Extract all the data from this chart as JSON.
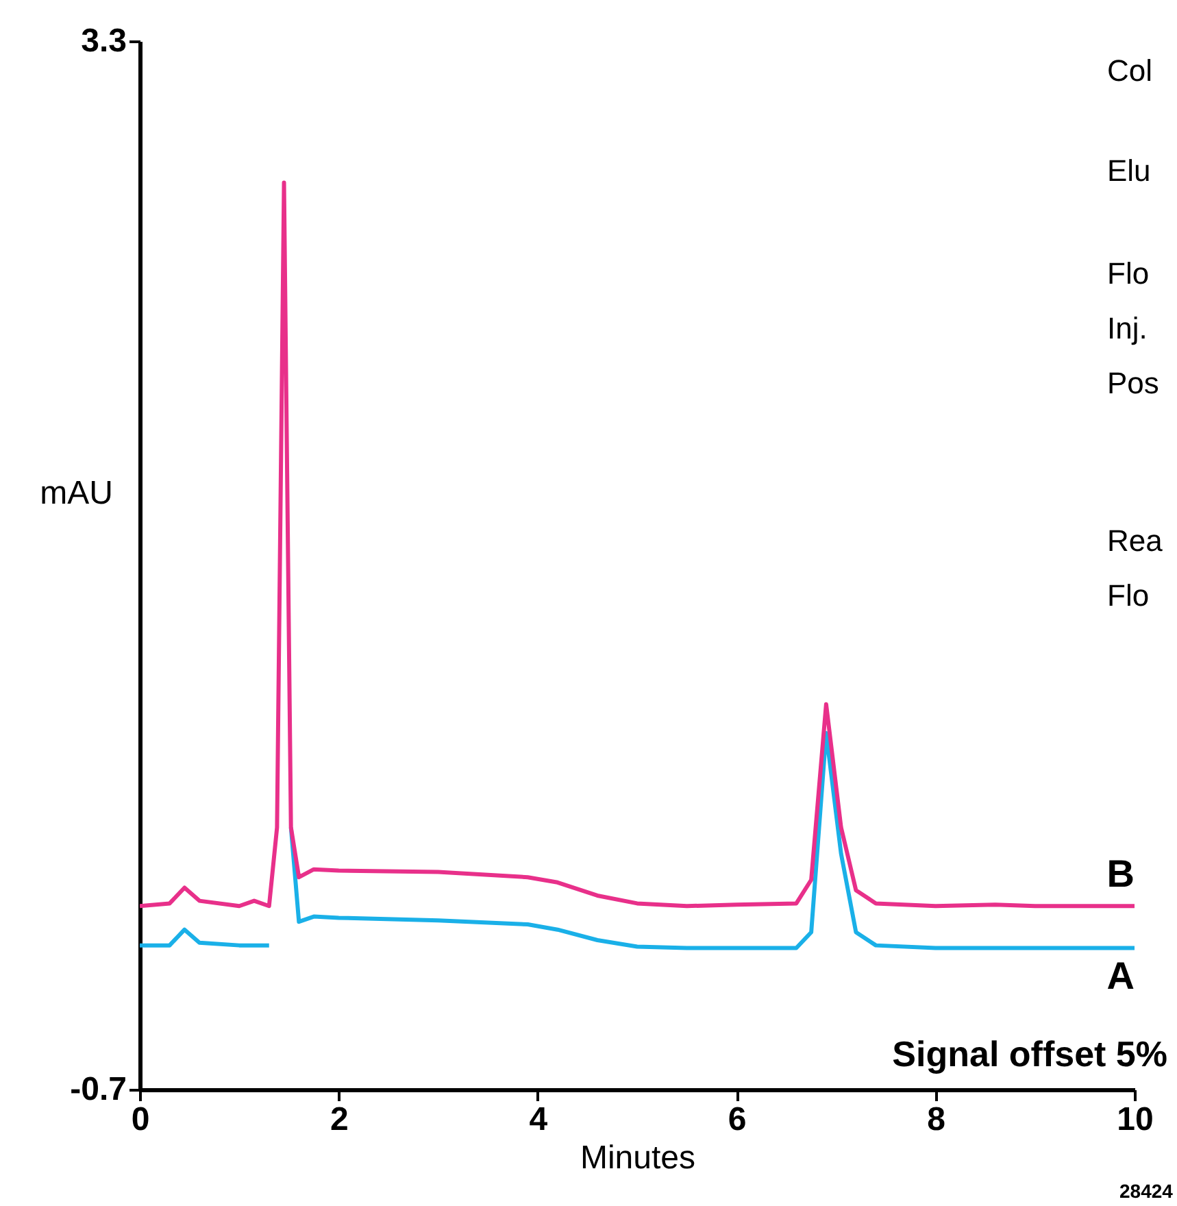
{
  "chart_data": {
    "type": "line",
    "xlabel": "Minutes",
    "ylabel": "mAU",
    "xlim": [
      0,
      10
    ],
    "xticks": [
      0,
      2,
      4,
      6,
      8,
      10
    ],
    "ylim": [
      -0.7,
      3.3
    ],
    "yticks": [
      -0.7,
      3.3
    ],
    "grid": false,
    "annotations": [
      "Col",
      "Elu",
      "Flo",
      "Inj.",
      "Pos",
      "Rea",
      "Flo",
      "Signal offset 5%",
      "28424"
    ],
    "series": [
      {
        "name": "A",
        "color": "#1ab0e8",
        "x": [
          0,
          0.3,
          0.45,
          0.6,
          1.0,
          1.3,
          1.38,
          1.45,
          1.52,
          1.6,
          1.75,
          2.0,
          3.0,
          3.9,
          4.2,
          4.6,
          5.0,
          5.5,
          6.0,
          6.6,
          6.75,
          6.9,
          7.05,
          7.2,
          7.4,
          8.0,
          9.0,
          10.0
        ],
        "values": [
          -0.15,
          -0.15,
          -0.09,
          -0.14,
          -0.15,
          -0.15,
          null,
          null,
          0.3,
          -0.06,
          -0.04,
          -0.045,
          -0.055,
          -0.07,
          -0.09,
          -0.13,
          -0.155,
          -0.16,
          -0.16,
          -0.16,
          -0.1,
          0.66,
          0.2,
          -0.1,
          -0.15,
          -0.16,
          -0.16,
          -0.16
        ]
      },
      {
        "name": "B",
        "color": "#e8308a",
        "x": [
          0,
          0.3,
          0.45,
          0.6,
          1.0,
          1.15,
          1.3,
          1.38,
          1.45,
          1.52,
          1.6,
          1.75,
          2.0,
          3.0,
          3.9,
          4.2,
          4.6,
          5.0,
          5.5,
          6.0,
          6.6,
          6.75,
          6.9,
          7.05,
          7.2,
          7.4,
          8.0,
          8.6,
          9.0,
          10.0
        ],
        "values": [
          0.0,
          0.01,
          0.07,
          0.02,
          0.0,
          0.02,
          0.0,
          0.3,
          2.76,
          0.3,
          0.11,
          0.14,
          0.135,
          0.13,
          0.11,
          0.09,
          0.04,
          0.01,
          0.0,
          0.005,
          0.01,
          0.1,
          0.77,
          0.3,
          0.06,
          0.01,
          0.0,
          0.005,
          0.0,
          0.0
        ]
      }
    ]
  }
}
